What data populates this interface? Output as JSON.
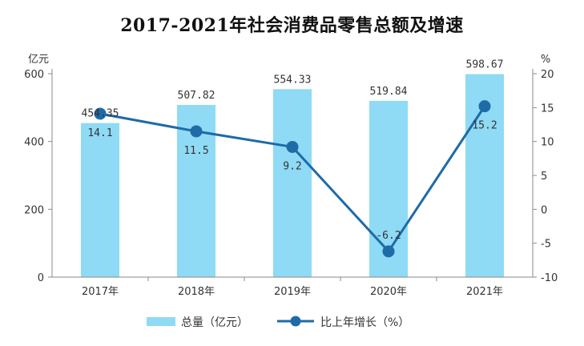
{
  "chart_data": {
    "type": "bar",
    "title": "2017-2021年社会消费品零售总额及增速",
    "categories": [
      "2017年",
      "2018年",
      "2019年",
      "2020年",
      "2021年"
    ],
    "series": [
      {
        "name": "总量（亿元）",
        "type": "bar",
        "axis": "left",
        "values": [
          454.35,
          507.82,
          554.33,
          519.84,
          598.67
        ],
        "labels": [
          "454.35",
          "507.82",
          "554.33",
          "519.84",
          "598.67"
        ],
        "color": "#8fdaf5"
      },
      {
        "name": "比上年增长（%）",
        "type": "line",
        "axis": "right",
        "values": [
          14.1,
          11.5,
          9.2,
          -6.2,
          15.2
        ],
        "labels": [
          "14.1",
          "11.5",
          "9.2",
          "-6.2",
          "15.2"
        ],
        "color": "#1e6ba8"
      }
    ],
    "y_left": {
      "unit": "亿元",
      "ylim": [
        0,
        600
      ],
      "ticks": [
        "0",
        "200",
        "400",
        "600"
      ]
    },
    "y_right": {
      "unit": "%",
      "ylim": [
        -10,
        20
      ],
      "ticks": [
        "-10",
        "-5",
        "0",
        "5",
        "10",
        "15",
        "20"
      ]
    },
    "grid": false,
    "legend_position": "bottom"
  }
}
